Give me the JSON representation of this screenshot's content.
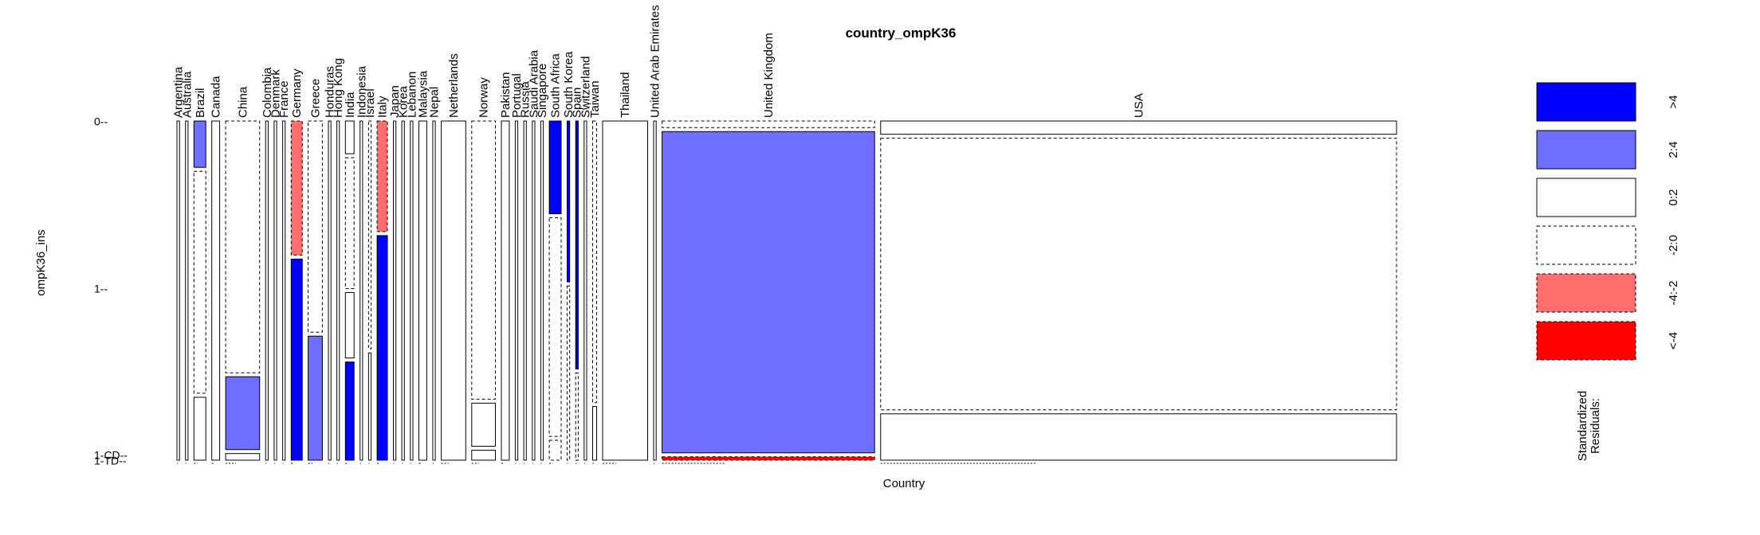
{
  "chart_data": {
    "type": "mosaic",
    "title": "country_ompK36",
    "xlabel": "Country",
    "ylabel": "ompK36_ins",
    "y_levels": [
      "0",
      "1",
      "1-CD",
      "1-TD"
    ],
    "legend": {
      "title": "Standardized\nResiduals:",
      "placement": "right",
      "entries": [
        {
          "label": ">4",
          "fill": "#0000ff",
          "dashed": false
        },
        {
          "label": "2:4",
          "fill": "#6e6eff",
          "dashed": false
        },
        {
          "label": "0:2",
          "fill": "#ffffff",
          "dashed": false
        },
        {
          "label": "-2:0",
          "fill": "#ffffff",
          "dashed": true
        },
        {
          "label": "-4:-2",
          "fill": "#ff6e6e",
          "dashed": true
        },
        {
          "label": "<-4",
          "fill": "#ff0000",
          "dashed": true
        }
      ]
    },
    "colors": {
      "pos4": "#0000ff",
      "pos2": "#6e6eff",
      "neg2": "#ff6e6e",
      "neg4": "#ff0000"
    },
    "columns": [
      {
        "label": "Argentina",
        "proportion": 0.0016,
        "segments": [
          {
            "level": "1",
            "fraction": 1,
            "fill": "#ffffff"
          }
        ]
      },
      {
        "label": "Australia",
        "proportion": 0.0016,
        "segments": [
          {
            "level": "1",
            "fraction": 1,
            "fill": "#ffffff"
          }
        ]
      },
      {
        "label": "Brazil",
        "proportion": 0.0075,
        "segments": [
          {
            "level": "0",
            "fraction": 0.14,
            "fill": "#6e6eff"
          },
          {
            "level": "1",
            "fraction": 0.67,
            "fill": "#ffffff",
            "dashed": true
          },
          {
            "level": "1-CD",
            "fraction": 0.19,
            "fill": "#ffffff"
          }
        ]
      },
      {
        "label": "Canada",
        "proportion": 0.005,
        "segments": [
          {
            "level": "1",
            "fraction": 1,
            "fill": "#ffffff"
          }
        ]
      },
      {
        "label": "China",
        "proportion": 0.0215,
        "segments": [
          {
            "level": "0",
            "fraction": 0.76,
            "fill": "#ffffff",
            "dashed": true
          },
          {
            "level": "1",
            "fraction": 0.22,
            "fill": "#6e6eff"
          },
          {
            "level": "1-CD",
            "fraction": 0.02,
            "fill": "#ffffff"
          }
        ]
      },
      {
        "label": "Colombia",
        "proportion": 0.0016,
        "segments": [
          {
            "level": "1",
            "fraction": 1,
            "fill": "#ffffff"
          }
        ]
      },
      {
        "label": "Denmark",
        "proportion": 0.0016,
        "segments": [
          {
            "level": "1",
            "fraction": 1,
            "fill": "#ffffff"
          }
        ]
      },
      {
        "label": "France",
        "proportion": 0.0016,
        "segments": [
          {
            "level": "1",
            "fraction": 1,
            "fill": "#ffffff"
          }
        ]
      },
      {
        "label": "Germany",
        "proportion": 0.007,
        "segments": [
          {
            "level": "0",
            "fraction": 0.4,
            "fill": "#ff6e6e",
            "dashed": true
          },
          {
            "level": "1",
            "fraction": 0.6,
            "fill": "#0000ff"
          }
        ]
      },
      {
        "label": "Greece",
        "proportion": 0.009,
        "segments": [
          {
            "level": "0",
            "fraction": 0.63,
            "fill": "#ffffff",
            "dashed": true
          },
          {
            "level": "1",
            "fraction": 0.37,
            "fill": "#6e6eff"
          }
        ]
      },
      {
        "label": "Honduras",
        "proportion": 0.0016,
        "segments": [
          {
            "level": "1",
            "fraction": 1,
            "fill": "#ffffff"
          }
        ]
      },
      {
        "label": "Hong Kong",
        "proportion": 0.0016,
        "segments": [
          {
            "level": "1",
            "fraction": 1,
            "fill": "#ffffff"
          }
        ]
      },
      {
        "label": "India",
        "proportion": 0.0055,
        "segments": [
          {
            "level": "0",
            "fraction": 0.1,
            "fill": "#ffffff"
          },
          {
            "level": "1",
            "fraction": 0.4,
            "fill": "#ffffff",
            "dashed": true
          },
          {
            "level": "1-CD",
            "fraction": 0.2,
            "fill": "#ffffff"
          },
          {
            "level": "1-TD",
            "fraction": 0.3,
            "fill": "#0000ff"
          }
        ]
      },
      {
        "label": "Indonesia",
        "proportion": 0.0016,
        "segments": [
          {
            "level": "1",
            "fraction": 1,
            "fill": "#ffffff"
          }
        ]
      },
      {
        "label": "Israel",
        "proportion": 0.0016,
        "segments": [
          {
            "level": "0",
            "fraction": 0.68,
            "fill": "#ffffff",
            "dashed": true
          },
          {
            "level": "1",
            "fraction": 0.32,
            "fill": "#ffffff"
          }
        ]
      },
      {
        "label": "Italy",
        "proportion": 0.0065,
        "segments": [
          {
            "level": "0",
            "fraction": 0.33,
            "fill": "#ff6e6e",
            "dashed": true
          },
          {
            "level": "1",
            "fraction": 0.67,
            "fill": "#0000ff"
          }
        ]
      },
      {
        "label": "Japan",
        "proportion": 0.0016,
        "segments": [
          {
            "level": "1",
            "fraction": 1,
            "fill": "#ffffff"
          }
        ]
      },
      {
        "label": "Korea",
        "proportion": 0.0016,
        "segments": [
          {
            "level": "1",
            "fraction": 1,
            "fill": "#ffffff"
          }
        ]
      },
      {
        "label": "Lebanon",
        "proportion": 0.0016,
        "segments": [
          {
            "level": "1",
            "fraction": 1,
            "fill": "#ffffff"
          }
        ]
      },
      {
        "label": "Malaysia",
        "proportion": 0.005,
        "segments": [
          {
            "level": "1",
            "fraction": 1,
            "fill": "#ffffff"
          }
        ]
      },
      {
        "label": "Nepal",
        "proportion": 0.0016,
        "segments": [
          {
            "level": "1",
            "fraction": 1,
            "fill": "#ffffff"
          }
        ]
      },
      {
        "label": "Netherlands",
        "proportion": 0.0155,
        "segments": [
          {
            "level": "1",
            "fraction": 1,
            "fill": "#ffffff"
          }
        ]
      },
      {
        "label": "Norway",
        "proportion": 0.015,
        "segments": [
          {
            "level": "0",
            "fraction": 0.84,
            "fill": "#ffffff",
            "dashed": true
          },
          {
            "level": "1",
            "fraction": 0.13,
            "fill": "#ffffff"
          },
          {
            "level": "1-CD",
            "fraction": 0.03,
            "fill": "#ffffff"
          }
        ]
      },
      {
        "label": "Pakistan",
        "proportion": 0.005,
        "segments": [
          {
            "level": "1",
            "fraction": 1,
            "fill": "#ffffff"
          }
        ]
      },
      {
        "label": "Portugal",
        "proportion": 0.0016,
        "segments": [
          {
            "level": "1",
            "fraction": 1,
            "fill": "#ffffff"
          }
        ]
      },
      {
        "label": "Russia",
        "proportion": 0.0016,
        "segments": [
          {
            "level": "1",
            "fraction": 1,
            "fill": "#ffffff"
          }
        ]
      },
      {
        "label": "Saudi Arabia",
        "proportion": 0.0016,
        "segments": [
          {
            "level": "1",
            "fraction": 1,
            "fill": "#ffffff"
          }
        ]
      },
      {
        "label": "Singapore",
        "proportion": 0.0016,
        "segments": [
          {
            "level": "1",
            "fraction": 1,
            "fill": "#ffffff"
          }
        ]
      },
      {
        "label": "South Africa",
        "proportion": 0.0075,
        "segments": [
          {
            "level": "0",
            "fraction": 0.28,
            "fill": "#0000ff"
          },
          {
            "level": "1",
            "fraction": 0.66,
            "fill": "#ffffff",
            "dashed": true
          },
          {
            "level": "1-CD",
            "fraction": 0.06,
            "fill": "#ffffff",
            "dashed": true
          }
        ]
      },
      {
        "label": "South Korea",
        "proportion": 0.0016,
        "segments": [
          {
            "level": "0",
            "fraction": 0.48,
            "fill": "#0000ff"
          },
          {
            "level": "1",
            "fraction": 0.52,
            "fill": "#ffffff",
            "dashed": true
          }
        ]
      },
      {
        "label": "Spain",
        "proportion": 0.0016,
        "segments": [
          {
            "level": "0",
            "fraction": 0.74,
            "fill": "#0000ff"
          },
          {
            "level": "1",
            "fraction": 0.26,
            "fill": "#ffffff",
            "dashed": true
          }
        ]
      },
      {
        "label": "Switzerland",
        "proportion": 0.0016,
        "segments": [
          {
            "level": "1",
            "fraction": 1,
            "fill": "#ffffff"
          }
        ]
      },
      {
        "label": "Taiwan",
        "proportion": 0.0025,
        "segments": [
          {
            "level": "0",
            "fraction": 0.84,
            "fill": "#ffffff",
            "dashed": true
          },
          {
            "level": "1",
            "fraction": 0.16,
            "fill": "#ffffff"
          }
        ]
      },
      {
        "label": "Thailand",
        "proportion": 0.0285,
        "segments": [
          {
            "level": "1",
            "fraction": 1,
            "fill": "#ffffff"
          }
        ]
      },
      {
        "label": "United Arab Emirates",
        "proportion": 0.0016,
        "segments": [
          {
            "level": "1",
            "fraction": 1,
            "fill": "#ffffff"
          }
        ]
      },
      {
        "label": "United Kingdom",
        "proportion": 0.1345,
        "segments": [
          {
            "level": "0",
            "fraction": 0.02,
            "fill": "#ffffff",
            "dashed": true
          },
          {
            "level": "1",
            "fraction": 0.97,
            "fill": "#6e6eff"
          },
          {
            "level": "1-CD",
            "fraction": 0.01,
            "fill": "#ff0000",
            "dashed": true
          }
        ]
      },
      {
        "label": "USA",
        "proportion": 0.3265,
        "segments": [
          {
            "level": "0",
            "fraction": 0.04,
            "fill": "#ffffff"
          },
          {
            "level": "1",
            "fraction": 0.82,
            "fill": "#ffffff",
            "dashed": true
          },
          {
            "level": "1-CD",
            "fraction": 0.14,
            "fill": "#ffffff"
          }
        ]
      }
    ]
  }
}
